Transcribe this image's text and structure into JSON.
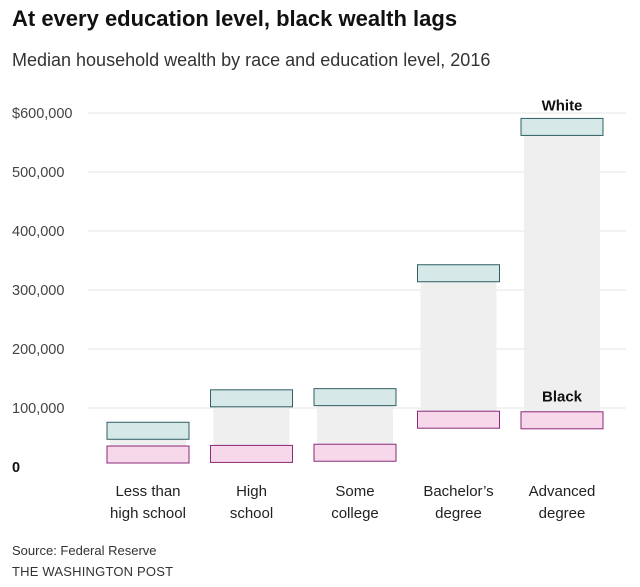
{
  "title": "At every education level, black wealth lags",
  "subtitle": "Median household wealth by race and education level, 2016",
  "source": "Source: Federal Reserve",
  "credit": "THE WASHINGTON POST",
  "colors": {
    "white_fill": "#d7e8e8",
    "white_stroke": "#2f5f63",
    "black_fill": "#f7d7ea",
    "black_stroke": "#8a2a7a",
    "range_fill": "#efefef",
    "grid": "#e4e4e4"
  },
  "chart_data": {
    "type": "bar",
    "title": "At every education level, black wealth lags",
    "subtitle": "Median household wealth by race and education level, 2016",
    "xlabel": "",
    "ylabel": "",
    "ylim": [
      0,
      600000
    ],
    "yticks": [
      0,
      100000,
      200000,
      300000,
      400000,
      500000,
      600000
    ],
    "ytick_labels": [
      "0",
      "100,000",
      "200,000",
      "300,000",
      "400,000",
      "500,000",
      "$600,000"
    ],
    "categories": [
      [
        "Less than",
        "high school"
      ],
      [
        "High",
        "school"
      ],
      [
        "Some",
        "college"
      ],
      [
        "Bachelor’s",
        "degree"
      ],
      [
        "Advanced",
        "degree"
      ]
    ],
    "series": [
      {
        "name": "White",
        "values": [
          47000,
          102000,
          104000,
          314000,
          562000
        ]
      },
      {
        "name": "Black",
        "values": [
          11000,
          12000,
          14000,
          70000,
          69000
        ]
      }
    ],
    "annotations": [
      "White",
      "Black"
    ]
  }
}
